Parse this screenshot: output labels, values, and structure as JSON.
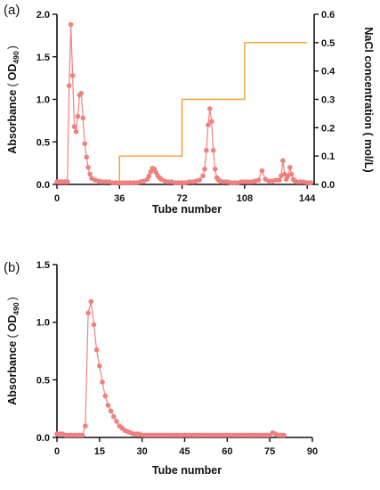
{
  "chart_data": [
    {
      "panel": "(a)",
      "type": "line",
      "xlabel": "Tube number",
      "ylabel_main": "Absorbance",
      "ylabel_paren_open": "(",
      "ylabel_unit": "OD",
      "ylabel_sub": "490",
      "ylabel_paren_close": ")",
      "y2label": "NaCl concentration ( mol/L)",
      "xlim": [
        0,
        148
      ],
      "ylim": [
        0,
        2.0
      ],
      "y2lim": [
        0,
        0.6
      ],
      "xticks": [
        "0",
        "36",
        "72",
        "108",
        "144"
      ],
      "yticks": [
        "0.0",
        "0.5",
        "1.0",
        "1.5",
        "2.0"
      ],
      "y2ticks": [
        "0.0",
        "0.1",
        "0.2",
        "0.3",
        "0.4",
        "0.5",
        "0.6"
      ],
      "series": [
        {
          "role": "absorbance",
          "color": "#f08080",
          "x": [
            0,
            1,
            2,
            3,
            4,
            5,
            6,
            7,
            8,
            9,
            10,
            11,
            12,
            13,
            14,
            15,
            16,
            17,
            18,
            19,
            20,
            22,
            24,
            26,
            28,
            30,
            32,
            34,
            36,
            38,
            40,
            42,
            44,
            46,
            48,
            50,
            52,
            53,
            54,
            55,
            56,
            57,
            58,
            59,
            60,
            62,
            64,
            66,
            68,
            70,
            72,
            74,
            76,
            78,
            80,
            82,
            84,
            85,
            86,
            87,
            88,
            89,
            90,
            91,
            92,
            93,
            94,
            96,
            98,
            100,
            102,
            104,
            106,
            108,
            110,
            112,
            114,
            116,
            118,
            120,
            122,
            124,
            126,
            128,
            129,
            130,
            131,
            132,
            133,
            134,
            135,
            136,
            137,
            138,
            140,
            142,
            144,
            146
          ],
          "y": [
            0.03,
            0.03,
            0.03,
            0.03,
            0.03,
            0.03,
            0.03,
            1.16,
            1.88,
            1.28,
            0.68,
            0.62,
            0.8,
            1.05,
            1.07,
            0.78,
            0.48,
            0.32,
            0.2,
            0.12,
            0.07,
            0.05,
            0.04,
            0.03,
            0.03,
            0.03,
            0.02,
            0.02,
            0.02,
            0.02,
            0.02,
            0.02,
            0.02,
            0.02,
            0.03,
            0.04,
            0.06,
            0.1,
            0.15,
            0.19,
            0.18,
            0.14,
            0.1,
            0.08,
            0.06,
            0.04,
            0.03,
            0.03,
            0.02,
            0.02,
            0.02,
            0.02,
            0.03,
            0.03,
            0.04,
            0.05,
            0.1,
            0.18,
            0.4,
            0.7,
            0.89,
            0.74,
            0.4,
            0.18,
            0.08,
            0.05,
            0.04,
            0.03,
            0.03,
            0.02,
            0.02,
            0.02,
            0.03,
            0.03,
            0.03,
            0.03,
            0.04,
            0.05,
            0.16,
            0.06,
            0.04,
            0.04,
            0.05,
            0.05,
            0.1,
            0.28,
            0.12,
            0.06,
            0.1,
            0.2,
            0.12,
            0.06,
            0.04,
            0.03,
            0.03,
            0.03,
            0.02,
            0.02
          ]
        },
        {
          "role": "NaCl concentration",
          "color": "#f0a030",
          "axis": "right",
          "x": [
            36,
            36,
            72,
            72,
            108,
            108,
            144
          ],
          "y": [
            0,
            0.1,
            0.1,
            0.3,
            0.3,
            0.5,
            0.5
          ]
        }
      ]
    },
    {
      "panel": "(b)",
      "type": "line",
      "xlabel": "Tube number",
      "ylabel_main": "Absorbance",
      "ylabel_paren_open": "(",
      "ylabel_unit": "OD",
      "ylabel_sub": "490",
      "ylabel_paren_close": ")",
      "xlim": [
        0,
        90
      ],
      "ylim": [
        0,
        1.5
      ],
      "xticks": [
        "0",
        "15",
        "30",
        "45",
        "60",
        "75",
        "90"
      ],
      "yticks": [
        "0.0",
        "0.5",
        "1.0",
        "1.5"
      ],
      "series": [
        {
          "role": "absorbance",
          "color": "#f08080",
          "x": [
            0,
            1,
            2,
            3,
            4,
            5,
            6,
            7,
            8,
            9,
            10,
            11,
            12,
            13,
            14,
            15,
            16,
            17,
            18,
            19,
            20,
            21,
            22,
            23,
            24,
            25,
            26,
            27,
            28,
            29,
            30,
            31,
            32,
            33,
            34,
            35,
            36,
            37,
            38,
            39,
            40,
            41,
            42,
            43,
            44,
            45,
            46,
            47,
            48,
            49,
            50,
            51,
            52,
            53,
            54,
            55,
            56,
            57,
            58,
            59,
            60,
            61,
            62,
            63,
            64,
            65,
            66,
            67,
            68,
            69,
            70,
            71,
            72,
            73,
            74,
            75,
            76,
            77,
            78,
            79,
            80
          ],
          "y": [
            0.03,
            0.03,
            0.03,
            0.02,
            0.02,
            0.02,
            0.02,
            0.02,
            0.02,
            0.02,
            0.1,
            1.08,
            1.18,
            0.98,
            0.76,
            0.62,
            0.48,
            0.36,
            0.28,
            0.23,
            0.18,
            0.14,
            0.1,
            0.08,
            0.06,
            0.05,
            0.04,
            0.03,
            0.03,
            0.03,
            0.02,
            0.02,
            0.02,
            0.02,
            0.02,
            0.02,
            0.02,
            0.02,
            0.02,
            0.02,
            0.02,
            0.02,
            0.02,
            0.02,
            0.02,
            0.02,
            0.02,
            0.02,
            0.02,
            0.02,
            0.02,
            0.02,
            0.02,
            0.02,
            0.02,
            0.02,
            0.02,
            0.02,
            0.02,
            0.02,
            0.02,
            0.02,
            0.02,
            0.02,
            0.02,
            0.02,
            0.02,
            0.02,
            0.02,
            0.02,
            0.02,
            0.02,
            0.02,
            0.02,
            0.02,
            0.02,
            0.04,
            0.03,
            0.02,
            0.02,
            0.02
          ]
        }
      ]
    }
  ]
}
